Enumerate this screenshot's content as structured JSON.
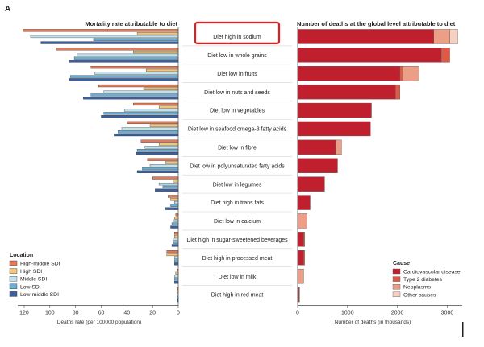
{
  "panel_label": "A",
  "chart_data": [
    {
      "type": "bar",
      "orientation": "horizontal-reversed",
      "title": "Mortality rate attributable to diet",
      "xlabel": "Deaths rate (per 100000 population)",
      "xlim": [
        0,
        125
      ],
      "xticks": [
        "0",
        "20",
        "40",
        "60",
        "80",
        "100",
        "120"
      ],
      "xtick_values": [
        0,
        20,
        40,
        60,
        80,
        100,
        120
      ],
      "grid": false,
      "legend": {
        "title": "Location",
        "position": "bottom-left",
        "entries": [
          "High-middle SDI",
          "High SDI",
          "Middle SDI",
          "Low SDI",
          "Low-middle SDI"
        ]
      },
      "categories": [
        "Diet high in sodium",
        "Diet low in whole grains",
        "Diet low in fruits",
        "Diet low in nuts and seeds",
        "Diet low in vegetables",
        "Diet low in seafood omega-3 fatty acids",
        "Diet low in fibre",
        "Diet low in polyunsaturated fatty acids",
        "Diet low in legumes",
        "Diet high in trans fats",
        "Diet low in calcium",
        "Diet high in sugar-sweetened beverages",
        "Diet high in processed meat",
        "Diet low in milk",
        "Diet high in red meat"
      ],
      "highlighted_category": "Diet high in sodium",
      "series": [
        {
          "name": "High-middle SDI",
          "color": "#e07b5a",
          "values": [
            121,
            95,
            68,
            62,
            35,
            40,
            29,
            24,
            20,
            8,
            2,
            3,
            9,
            1,
            1
          ]
        },
        {
          "name": "High SDI",
          "color": "#f2c57c",
          "values": [
            32,
            35,
            25,
            27,
            15,
            22,
            15,
            10,
            4,
            6,
            3,
            3,
            9,
            2,
            1
          ]
        },
        {
          "name": "Middle SDI",
          "color": "#bfe2ec",
          "values": [
            115,
            79,
            65,
            58,
            42,
            44,
            26,
            22,
            15,
            3,
            4,
            4,
            3,
            3,
            1
          ]
        },
        {
          "name": "Low SDI",
          "color": "#6aaed6",
          "values": [
            66,
            81,
            84,
            68,
            58,
            47,
            32,
            28,
            12,
            6,
            5,
            4,
            3,
            3,
            1
          ]
        },
        {
          "name": "Low-middle SDI",
          "color": "#3a5f9e",
          "values": [
            107,
            85,
            85,
            74,
            60,
            50,
            33,
            32,
            18,
            10,
            6,
            5,
            3,
            3,
            1
          ]
        }
      ]
    },
    {
      "type": "bar",
      "orientation": "horizontal-stacked",
      "title": "Number of deaths at the global level attributable to diet",
      "xlabel": "Number of deaths (in thousands)",
      "xlim": [
        0,
        3300
      ],
      "xticks": [
        "0",
        "1000",
        "2000",
        "3000"
      ],
      "xtick_values": [
        0,
        1000,
        2000,
        3000
      ],
      "grid": false,
      "legend": {
        "title": "Cause",
        "position": "bottom-right",
        "entries": [
          "Cardiovascular disease",
          "Type 2 diabetes",
          "Neoplasms",
          "Other causes"
        ]
      },
      "categories": [
        "Diet high in sodium",
        "Diet low in whole grains",
        "Diet low in fruits",
        "Diet low in nuts and seeds",
        "Diet low in vegetables",
        "Diet low in seafood omega-3 fatty acids",
        "Diet low in fibre",
        "Diet low in polyunsaturated fatty acids",
        "Diet low in legumes",
        "Diet high in trans fats",
        "Diet low in calcium",
        "Diet high in sugar-sweetened beverages",
        "Diet high in processed meat",
        "Diet low in milk",
        "Diet high in red meat"
      ],
      "series": [
        {
          "name": "Cardiovascular disease",
          "color": "#c0202e",
          "values": [
            2730,
            2880,
            2050,
            1960,
            1480,
            1460,
            760,
            800,
            540,
            250,
            0,
            120,
            120,
            0,
            20
          ]
        },
        {
          "name": "Type 2 diabetes",
          "color": "#dd5a48",
          "values": [
            0,
            170,
            60,
            90,
            0,
            0,
            0,
            0,
            0,
            0,
            0,
            20,
            20,
            0,
            10
          ]
        },
        {
          "name": "Neoplasms",
          "color": "#ec9e86",
          "values": [
            320,
            0,
            320,
            0,
            0,
            0,
            120,
            0,
            0,
            0,
            190,
            0,
            0,
            120,
            10
          ]
        },
        {
          "name": "Other causes",
          "color": "#f6d0c0",
          "values": [
            160,
            0,
            0,
            0,
            0,
            0,
            0,
            0,
            0,
            0,
            0,
            0,
            0,
            0,
            0
          ]
        }
      ]
    }
  ]
}
